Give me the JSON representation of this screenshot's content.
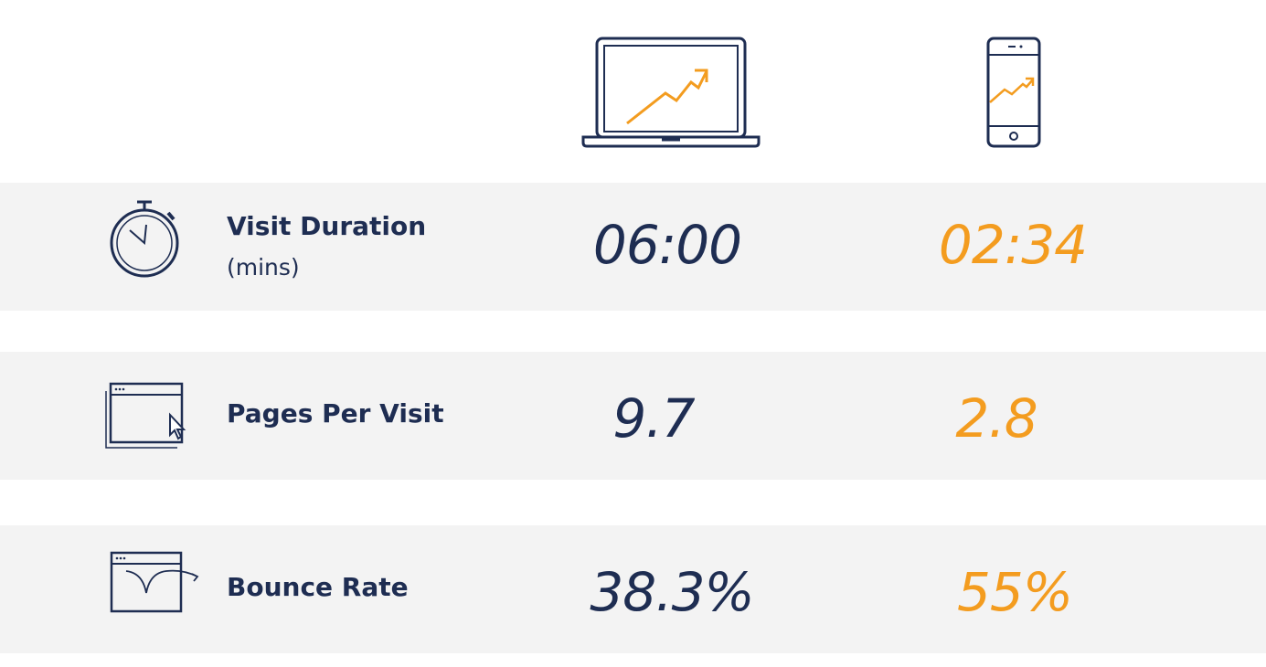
{
  "rows": [
    {
      "label": "Visit Duration",
      "sublabel": "(mins)",
      "desktop": "06:00",
      "mobile": "02:34"
    },
    {
      "label": "Pages Per Visit",
      "desktop": "9.7",
      "mobile": "2.8"
    },
    {
      "label": "Bounce Rate",
      "desktop": "38.3%",
      "mobile": "55%"
    }
  ]
}
